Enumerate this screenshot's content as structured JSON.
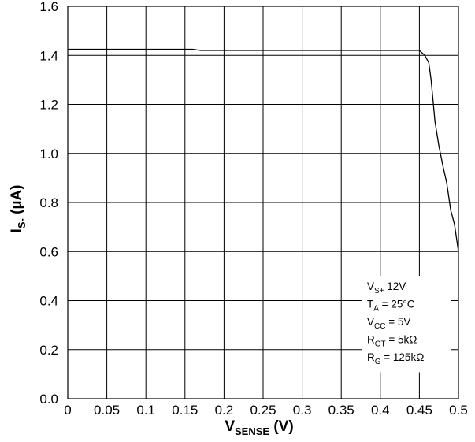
{
  "chart_data": {
    "type": "line",
    "title": "",
    "xlabel": {
      "main": "V",
      "sub": "SENSE",
      "rest": " (V)"
    },
    "ylabel": {
      "main": "I",
      "sub": "S-",
      "rest": " (µA)"
    },
    "xlim": [
      0,
      0.5
    ],
    "ylim": [
      0,
      1.6
    ],
    "x_ticks": [
      "0",
      "0.05",
      "0.1",
      "0.15",
      "0.2",
      "0.25",
      "0.3",
      "0.35",
      "0.4",
      "0.45",
      "0.5"
    ],
    "y_ticks": [
      "0.0",
      "0.2",
      "0.4",
      "0.6",
      "0.8",
      "1.0",
      "1.2",
      "1.4",
      "1.6"
    ],
    "grid": true,
    "series": [
      {
        "color": "#000000",
        "x": [
          0,
          0.05,
          0.1,
          0.16,
          0.17,
          0.2,
          0.3,
          0.4,
          0.45,
          0.457,
          0.462,
          0.465,
          0.47,
          0.475,
          0.48,
          0.485,
          0.49,
          0.495,
          0.5
        ],
        "y": [
          1.425,
          1.425,
          1.425,
          1.425,
          1.42,
          1.42,
          1.42,
          1.42,
          1.42,
          1.4,
          1.37,
          1.3,
          1.13,
          1.03,
          0.95,
          0.88,
          0.77,
          0.71,
          0.6
        ]
      }
    ],
    "annotations": [
      {
        "main": "V",
        "sub": "S+",
        "rest": " 12V"
      },
      {
        "main": "T",
        "sub": "A",
        "rest": " = 25°C"
      },
      {
        "main": "V",
        "sub": "CC",
        "rest": " = 5V"
      },
      {
        "main": "R",
        "sub": "GT",
        "rest": " = 5kΩ"
      },
      {
        "main": "R",
        "sub": "G",
        "rest": " = 125kΩ"
      }
    ]
  }
}
